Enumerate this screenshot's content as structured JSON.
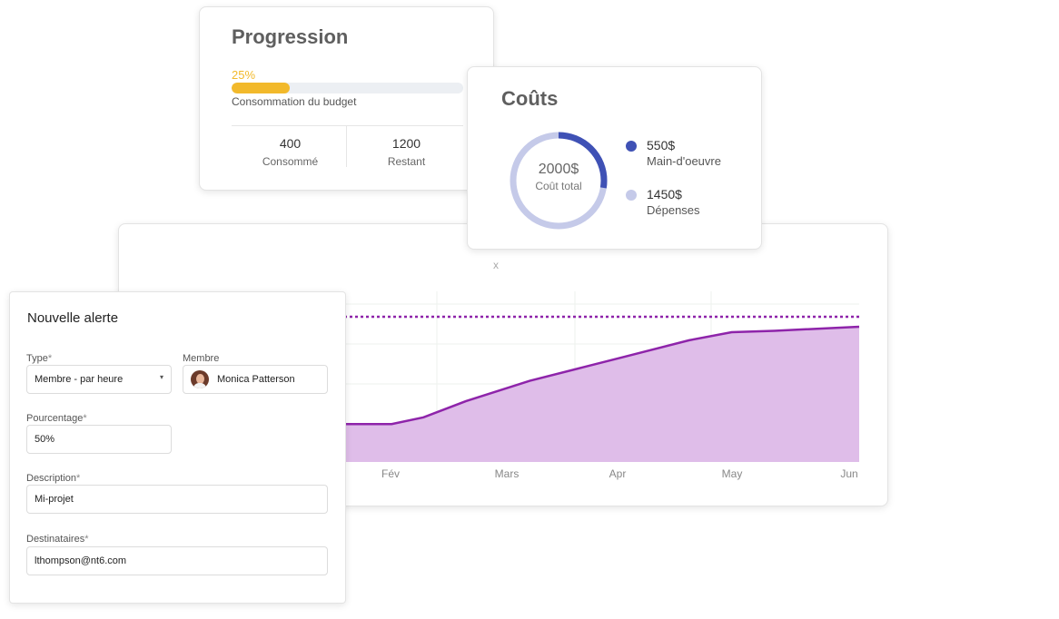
{
  "progression": {
    "title": "Progression",
    "percent_label": "25%",
    "percent_value": 0.25,
    "caption": "Consommation du budget",
    "consumed_value": "400",
    "consumed_label": "Consommé",
    "remaining_value": "1200",
    "remaining_label": "Restant",
    "accent_color": "#f2b92b"
  },
  "costs": {
    "title": "Coûts",
    "total_value": "2000$",
    "total_label": "Coût total",
    "items": [
      {
        "value": "550$",
        "label": "Main-d'oeuvre",
        "amount": 550,
        "color": "#3f51b5"
      },
      {
        "value": "1450$",
        "label": "Dépenses",
        "amount": 1450,
        "color": "#c5cae9"
      }
    ]
  },
  "chart_card": {
    "close_label": "x"
  },
  "chart_data": {
    "type": "area",
    "categories": [
      "Fév",
      "Mars",
      "Apr",
      "May",
      "Jun"
    ],
    "x": [
      0.1,
      0.6,
      0.9,
      1.3,
      1.9,
      2.4,
      2.8,
      3.4,
      3.8,
      4.2,
      5.0
    ],
    "y": [
      0.28,
      0.28,
      0.33,
      0.45,
      0.6,
      0.7,
      0.78,
      0.9,
      0.96,
      0.97,
      1.0
    ],
    "threshold": 1.0,
    "fill_color": "#dfbde9",
    "line_color": "#8e24aa",
    "grid": true
  },
  "alert_form": {
    "title": "Nouvelle alerte",
    "type_label": "Type",
    "type_value": "Membre - par heure",
    "member_label": "Membre",
    "member_value": "Monica Patterson",
    "percentage_label": "Pourcentage",
    "percentage_value": "50%",
    "description_label": "Description",
    "description_value": "Mi-projet",
    "recipients_label": "Destinataires",
    "recipients_value": "lthompson@nt6.com",
    "required_mark": "*",
    "caret_icon": "chevron-down-icon"
  }
}
